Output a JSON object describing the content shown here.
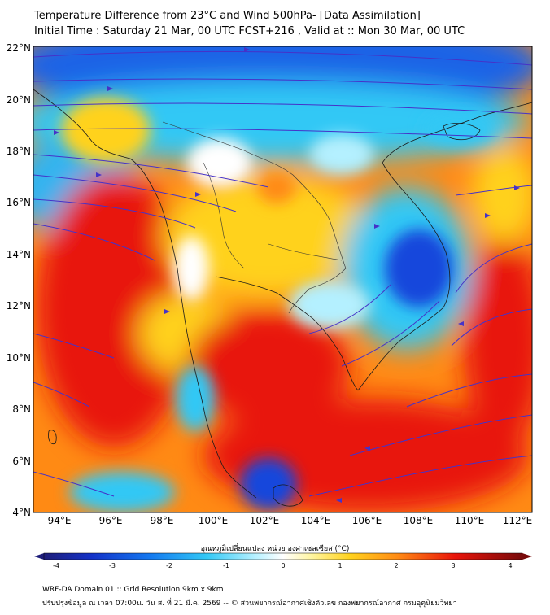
{
  "header": {
    "title_line1": "Temperature Difference from 23°C and Wind 500hPa- [Data Assimilation]",
    "title_line2": "Initial Time : Saturday 21 Mar, 00 UTC FCST+216 , Valid at ::  Mon 30 Mar, 00 UTC"
  },
  "map": {
    "lon_ticks": [
      "94°E",
      "96°E",
      "98°E",
      "100°E",
      "102°E",
      "104°E",
      "106°E",
      "108°E",
      "110°E",
      "112°E"
    ],
    "lat_ticks": [
      "22°N",
      "20°N",
      "18°N",
      "16°N",
      "14°N",
      "12°N",
      "10°N",
      "8°N",
      "6°N",
      "4°N"
    ],
    "lon_range": [
      93.1,
      112.6
    ],
    "lat_range": [
      4,
      22.2
    ],
    "colors": {
      "strong_warm": "#e8140a",
      "warm": "#ff8a14",
      "mild_warm": "#ffd21e",
      "neutral": "#ffffff",
      "cool": "#32c8f5",
      "cold": "#1446dc",
      "streamline": "#4632c8"
    }
  },
  "colorbar": {
    "label": "อุณหภูมิเปลี่ยนแปลง หน่วย องศาเซลเซียส (°C)",
    "ticks": [
      "-4",
      "-3",
      "-2",
      "-1",
      "0",
      "1",
      "2",
      "3",
      "4"
    ],
    "range": [
      -4,
      4
    ]
  },
  "footer": {
    "line1": "WRF-DA Domain 01 :: Grid Resolution 9km x 9km",
    "line2": "ปรับปรุงข้อมูล ณ เวลา 07:00น. วัน ส. ที่ 21 มี.ค. 2569 -- © ส่วนพยากรณ์อากาศเชิงตัวเลข กองพยากรณ์อากาศ กรมอุตุนิยมวิทยา"
  }
}
